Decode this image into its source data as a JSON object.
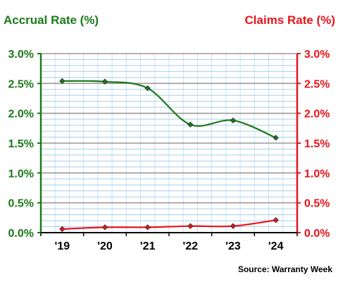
{
  "chart_data": {
    "type": "line",
    "title": "",
    "categories": [
      "'19",
      "'20",
      "'21",
      "'22",
      "'23",
      "'24"
    ],
    "left_axis": {
      "label": "Accrual Rate (%)",
      "ylim": [
        0,
        3.0
      ],
      "ticks": [
        "0.0%",
        "0.5%",
        "1.0%",
        "1.5%",
        "2.0%",
        "2.5%",
        "3.0%"
      ],
      "color": "#1a7a1a"
    },
    "right_axis": {
      "label": "Claims Rate (%)",
      "ylim": [
        0,
        3.0
      ],
      "ticks": [
        "0.0%",
        "0.5%",
        "1.0%",
        "1.5%",
        "2.0%",
        "2.5%",
        "3.0%"
      ],
      "color": "#e8141c"
    },
    "series": [
      {
        "axis": "left",
        "color": "#1a7a1a",
        "values": [
          2.54,
          2.53,
          2.42,
          1.81,
          1.88,
          1.59
        ]
      },
      {
        "axis": "right",
        "color": "#e8141c",
        "values": [
          0.06,
          0.09,
          0.09,
          0.11,
          0.11,
          0.21
        ]
      }
    ],
    "gridlines": true,
    "source": "Source: Warranty Week"
  }
}
